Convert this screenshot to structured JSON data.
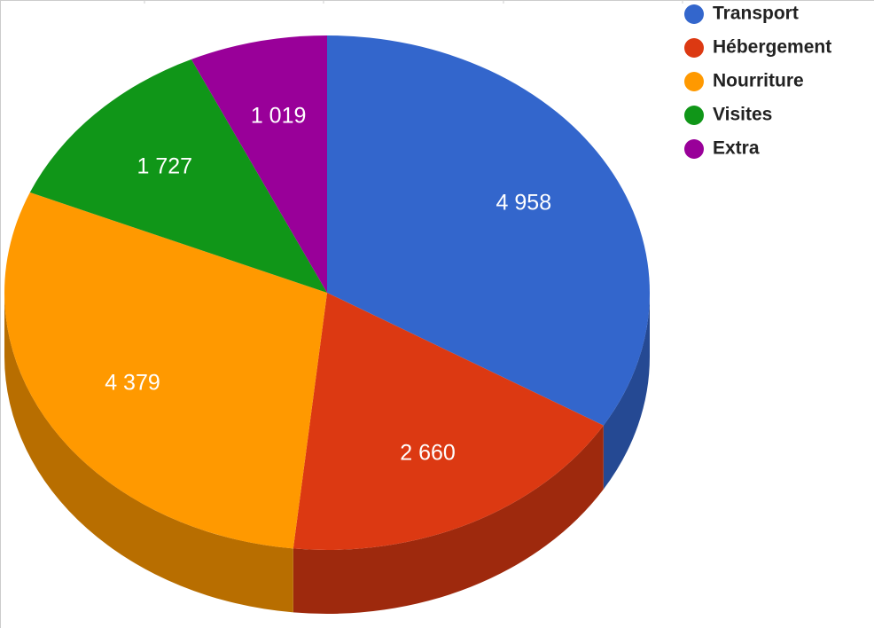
{
  "chart_data": {
    "type": "pie3d",
    "categories": [
      "Transport",
      "Hébergement",
      "Nourriture",
      "Visites",
      "Extra"
    ],
    "values": [
      4958,
      2660,
      4379,
      1727,
      1019
    ],
    "value_labels": [
      "4 958",
      "2 660",
      "4 379",
      "1 727",
      "1 019"
    ],
    "colors": [
      "#3366cc",
      "#dc3912",
      "#ff9900",
      "#109618",
      "#990099"
    ],
    "legend": "top-right"
  }
}
